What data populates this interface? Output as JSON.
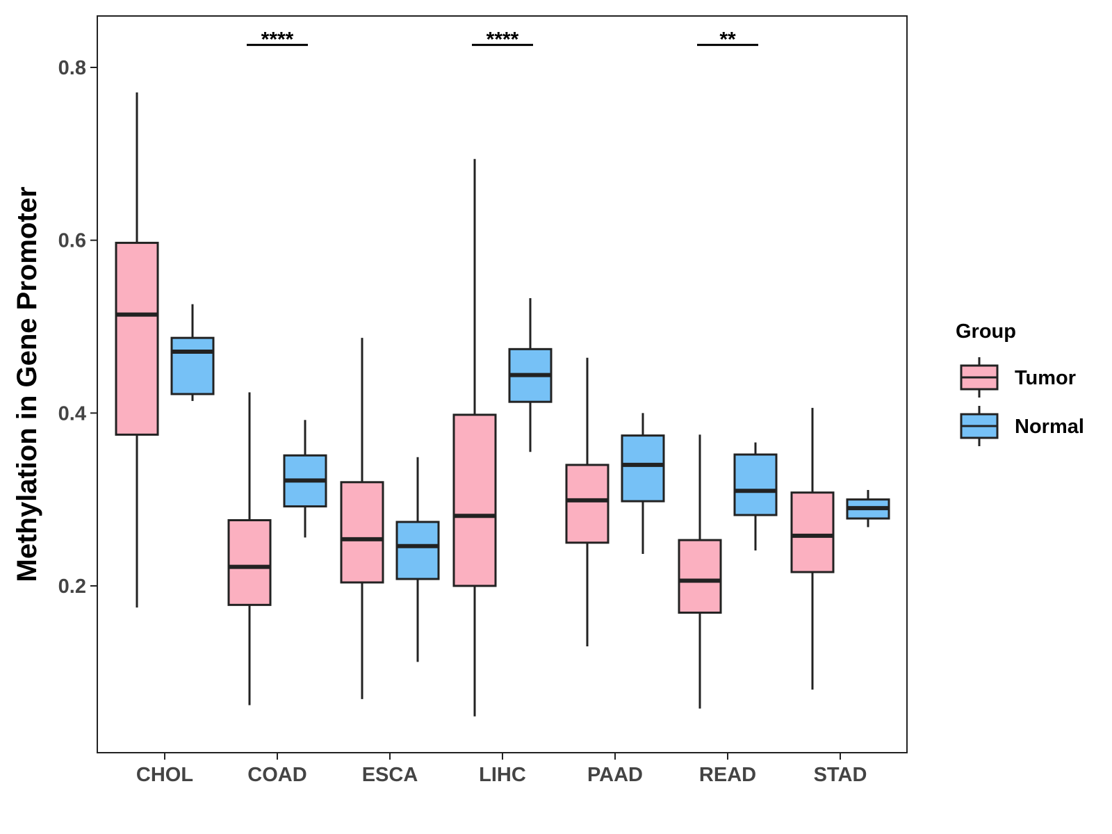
{
  "chart_data": {
    "type": "box",
    "title": "",
    "xlabel": "",
    "ylabel": "Methylation in Gene Promoter",
    "ylim": [
      0.02,
      0.86
    ],
    "yticks": [
      0.2,
      0.4,
      0.6,
      0.8
    ],
    "ytick_labels": [
      "0.2",
      "0.4",
      "0.6",
      "0.8"
    ],
    "categories": [
      "CHOL",
      "COAD",
      "ESCA",
      "LIHC",
      "PAAD",
      "READ",
      "STAD"
    ],
    "legend": {
      "title": "Group",
      "position": "right",
      "entries": [
        {
          "name": "Tumor",
          "color": "#FBB0C0"
        },
        {
          "name": "Normal",
          "color": "#76C1F6"
        }
      ]
    },
    "series": [
      {
        "name": "Tumor",
        "color": "#FBB0C0",
        "boxes": [
          {
            "category": "CHOL",
            "min": 0.175,
            "q1": 0.375,
            "median": 0.514,
            "q3": 0.597,
            "max": 0.771
          },
          {
            "category": "COAD",
            "min": 0.062,
            "q1": 0.178,
            "median": 0.222,
            "q3": 0.276,
            "max": 0.424
          },
          {
            "category": "ESCA",
            "min": 0.069,
            "q1": 0.204,
            "median": 0.254,
            "q3": 0.32,
            "max": 0.487
          },
          {
            "category": "LIHC",
            "min": 0.049,
            "q1": 0.2,
            "median": 0.281,
            "q3": 0.398,
            "max": 0.694
          },
          {
            "category": "PAAD",
            "min": 0.13,
            "q1": 0.25,
            "median": 0.299,
            "q3": 0.34,
            "max": 0.464
          },
          {
            "category": "READ",
            "min": 0.058,
            "q1": 0.169,
            "median": 0.206,
            "q3": 0.253,
            "max": 0.375
          },
          {
            "category": "STAD",
            "min": 0.08,
            "q1": 0.216,
            "median": 0.258,
            "q3": 0.308,
            "max": 0.406
          }
        ]
      },
      {
        "name": "Normal",
        "color": "#76C1F6",
        "boxes": [
          {
            "category": "CHOL",
            "min": 0.414,
            "q1": 0.422,
            "median": 0.471,
            "q3": 0.487,
            "max": 0.526
          },
          {
            "category": "COAD",
            "min": 0.256,
            "q1": 0.292,
            "median": 0.322,
            "q3": 0.351,
            "max": 0.392
          },
          {
            "category": "ESCA",
            "min": 0.112,
            "q1": 0.208,
            "median": 0.246,
            "q3": 0.274,
            "max": 0.349
          },
          {
            "category": "LIHC",
            "min": 0.355,
            "q1": 0.413,
            "median": 0.444,
            "q3": 0.474,
            "max": 0.533
          },
          {
            "category": "PAAD",
            "min": 0.237,
            "q1": 0.298,
            "median": 0.34,
            "q3": 0.374,
            "max": 0.4
          },
          {
            "category": "READ",
            "min": 0.241,
            "q1": 0.282,
            "median": 0.31,
            "q3": 0.352,
            "max": 0.366
          },
          {
            "category": "STAD",
            "min": 0.268,
            "q1": 0.278,
            "median": 0.29,
            "q3": 0.3,
            "max": 0.311
          }
        ]
      }
    ],
    "annotations": [
      {
        "category": "COAD",
        "text": "****",
        "y": 0.826
      },
      {
        "category": "LIHC",
        "text": "****",
        "y": 0.826
      },
      {
        "category": "READ",
        "text": "**",
        "y": 0.826
      }
    ]
  }
}
